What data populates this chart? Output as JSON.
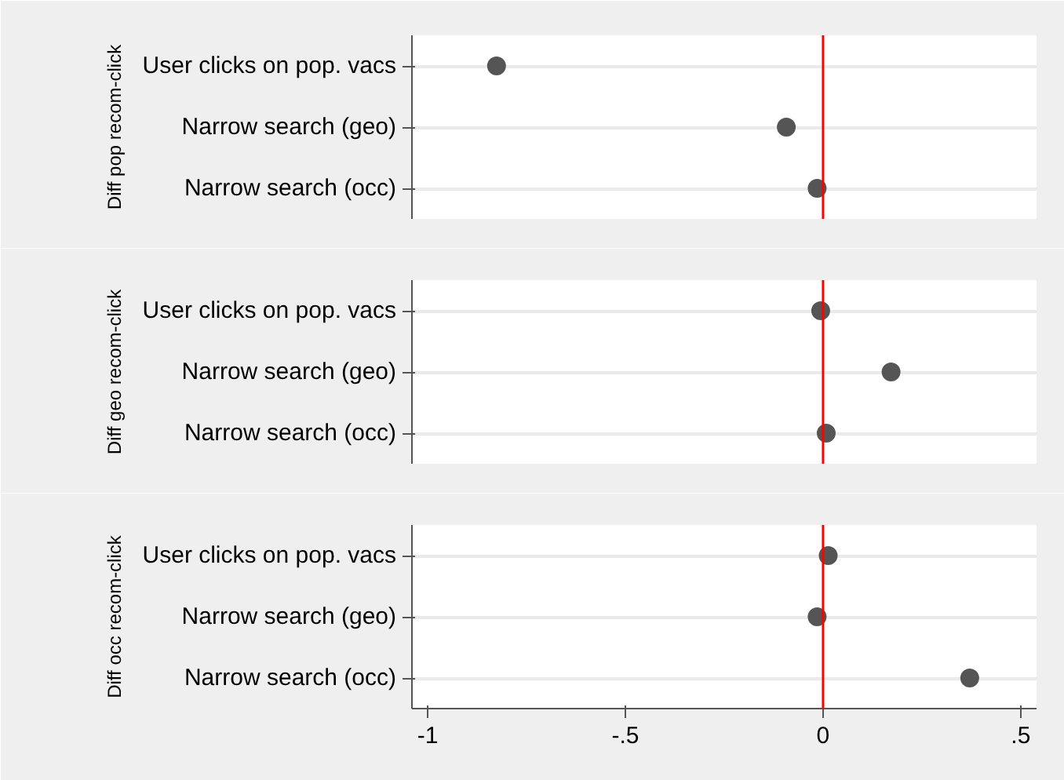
{
  "chart_data": [
    {
      "type": "scatter",
      "orientation": "horizontal",
      "ylabel": "Diff pop recom-click",
      "categories": [
        "User clicks on pop. vacs",
        "Narrow search (geo)",
        "Narrow search (occ)"
      ],
      "series": [
        {
          "color": "#555555",
          "values": [
            -0.826,
            -0.093,
            -0.015
          ]
        }
      ],
      "marker": "circle",
      "xlim": [
        -1.04,
        0.54
      ],
      "ref_lines": [
        {
          "axis": "x",
          "value": 0,
          "color": "#ff0000"
        }
      ],
      "grid": "y",
      "tick_labels": "y"
    },
    {
      "type": "scatter",
      "orientation": "horizontal",
      "ylabel": "Diff geo recom-click",
      "categories": [
        "User clicks on pop. vacs",
        "Narrow search (geo)",
        "Narrow search (occ)"
      ],
      "series": [
        {
          "color": "#555555",
          "values": [
            -0.006,
            0.172,
            0.008
          ]
        }
      ],
      "marker": "circle",
      "xlim": [
        -1.04,
        0.54
      ],
      "ref_lines": [
        {
          "axis": "x",
          "value": 0,
          "color": "#ff0000"
        }
      ],
      "grid": "y",
      "tick_labels": "y"
    },
    {
      "type": "scatter",
      "orientation": "horizontal",
      "ylabel": "Diff occ recom-click",
      "categories": [
        "User clicks on pop. vacs",
        "Narrow search (geo)",
        "Narrow search (occ)"
      ],
      "series": [
        {
          "color": "#555555",
          "values": [
            0.013,
            -0.015,
            0.371
          ]
        }
      ],
      "marker": "circle",
      "xlim": [
        -1.04,
        0.54
      ],
      "xticks": [
        {
          "value": -1,
          "label": "-1"
        },
        {
          "value": -0.5,
          "label": "-.5"
        },
        0,
        {
          "value": 0.5,
          "label": ".5"
        }
      ],
      "ref_lines": [
        {
          "axis": "x",
          "value": 0,
          "color": "#ff0000"
        }
      ],
      "grid": "y"
    }
  ]
}
